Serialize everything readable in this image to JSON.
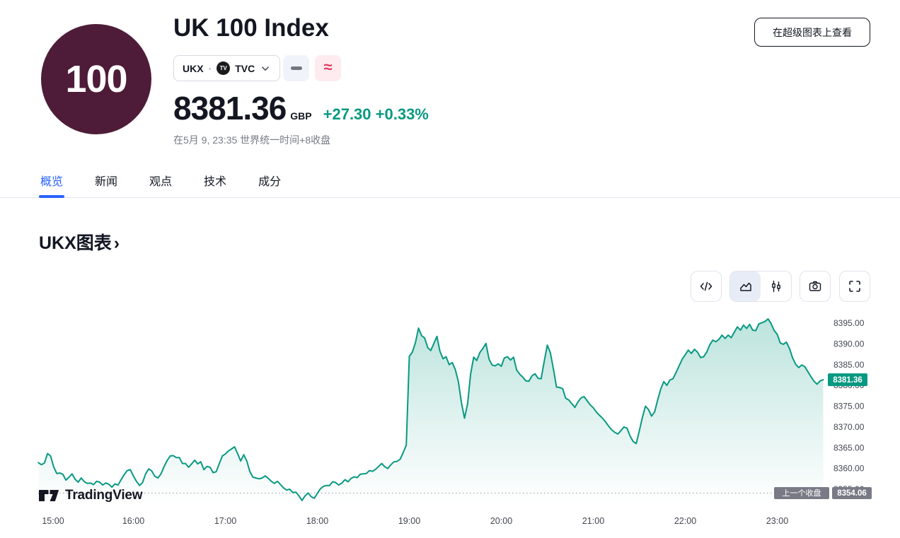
{
  "header": {
    "logo_text": "100",
    "title": "UK 100 Index",
    "symbol": {
      "ticker": "UKX",
      "separator": "·",
      "exchange": "TVC",
      "exchange_logo_text": "TV"
    },
    "price": "8381.36",
    "currency": "GBP",
    "change": "+27.30 +0.33%",
    "close_info": "在5月 9, 23:35 世界统一时间+8收盘",
    "supercharts_button": "在超级图表上查看"
  },
  "tabs": [
    {
      "label": "概览",
      "active": true
    },
    {
      "label": "新闻",
      "active": false
    },
    {
      "label": "观点",
      "active": false
    },
    {
      "label": "技术",
      "active": false
    },
    {
      "label": "成分",
      "active": false
    }
  ],
  "section": {
    "heading": "UKX图表",
    "chevron": "›"
  },
  "watermark": {
    "text": "TradingView"
  },
  "colors": {
    "accent_blue": "#2962ff",
    "up_green": "#089981",
    "badge_gray": "#787b86",
    "logo_plum": "#4e1c38",
    "wave_pink": "#e23b5f"
  },
  "chart_data": {
    "type": "area",
    "symbol": "UKX",
    "title": "UKX图表",
    "line_color": "#089981",
    "current_price": 8381.36,
    "current_price_label": "8381.36",
    "prev_close": 8354.06,
    "prev_close_label": "上一个收盘",
    "prev_close_value_label": "8354.06",
    "y_ticks": [
      8395,
      8390,
      8385,
      8380,
      8375,
      8370,
      8365,
      8360,
      8355
    ],
    "ylim": [
      8351,
      8397
    ],
    "x_ticks": [
      "15:00",
      "16:00",
      "17:00",
      "18:00",
      "19:00",
      "20:00",
      "21:00",
      "22:00",
      "23:00"
    ],
    "time_start": "14:58",
    "time_end": "23:30",
    "t0_min": -2,
    "dt_min": 2,
    "values": [
      8361.4,
      8360.9,
      8361.3,
      8363.6,
      8363.0,
      8360.4,
      8358.8,
      8358.9,
      8358.6,
      8357.2,
      8357.9,
      8358.7,
      8357.4,
      8356.7,
      8357.7,
      8356.8,
      8356.4,
      8356.5,
      8356.1,
      8356.9,
      8356.7,
      8356.0,
      8356.5,
      8356.2,
      8355.5,
      8356.3,
      8356.0,
      8357.3,
      8358.5,
      8359.5,
      8359.7,
      8358.2,
      8356.9,
      8355.9,
      8356.6,
      8358.7,
      8359.9,
      8359.4,
      8358.1,
      8357.7,
      8358.7,
      8360.4,
      8361.9,
      8363.0,
      8363.1,
      8362.6,
      8362.6,
      8361.2,
      8361.2,
      8360.3,
      8361.1,
      8362.0,
      8361.1,
      8361.6,
      8359.7,
      8360.5,
      8360.3,
      8359.0,
      8359.2,
      8361.1,
      8363.0,
      8363.5,
      8364.2,
      8364.7,
      8365.2,
      8363.6,
      8361.8,
      8363.3,
      8361.8,
      8359.2,
      8357.9,
      8357.7,
      8357.5,
      8357.7,
      8358.2,
      8357.6,
      8356.9,
      8356.4,
      8356.9,
      8356.1,
      8355.3,
      8354.8,
      8355.0,
      8354.2,
      8354.3,
      8353.4,
      8352.3,
      8353.4,
      8354.1,
      8353.2,
      8352.8,
      8354.0,
      8355.1,
      8355.7,
      8355.9,
      8355.9,
      8356.8,
      8356.6,
      8356.0,
      8356.5,
      8357.3,
      8356.8,
      8357.6,
      8358.0,
      8357.8,
      8358.6,
      8358.7,
      8358.8,
      8359.5,
      8359.3,
      8359.8,
      8360.5,
      8361.2,
      8360.4,
      8360.0,
      8360.9,
      8361.6,
      8361.7,
      8362.2,
      8363.8,
      8365.6,
      8387.0,
      8388.0,
      8390.3,
      8393.8,
      8392.0,
      8391.4,
      8389.1,
      8388.4,
      8390.1,
      8391.8,
      8388.2,
      8386.4,
      8386.9,
      8385.0,
      8385.5,
      8383.8,
      8380.9,
      8375.8,
      8372.1,
      8375.5,
      8382.8,
      8386.8,
      8386.0,
      8387.9,
      8388.9,
      8390.1,
      8386.3,
      8384.9,
      8384.7,
      8385.2,
      8384.6,
      8386.6,
      8386.9,
      8386.1,
      8386.8,
      8383.7,
      8382.7,
      8382.0,
      8381.1,
      8381.0,
      8382.3,
      8382.8,
      8381.7,
      8381.6,
      8385.8,
      8389.7,
      8387.9,
      8383.9,
      8379.6,
      8379.5,
      8379.2,
      8376.9,
      8376.5,
      8375.6,
      8374.7,
      8376.0,
      8377.0,
      8377.3,
      8376.3,
      8375.3,
      8374.6,
      8373.6,
      8372.8,
      8372.1,
      8371.2,
      8370.2,
      8369.3,
      8368.7,
      8368.3,
      8369.1,
      8370.0,
      8369.7,
      8367.8,
      8366.5,
      8366.0,
      8369.0,
      8372.2,
      8375.0,
      8374.2,
      8372.6,
      8373.6,
      8376.5,
      8379.1,
      8380.9,
      8380.0,
      8381.3,
      8381.6,
      8383.1,
      8384.7,
      8386.3,
      8387.4,
      8388.5,
      8387.7,
      8388.7,
      8388.0,
      8386.7,
      8386.9,
      8388.0,
      8389.8,
      8390.9,
      8390.5,
      8391.1,
      8392.1,
      8391.3,
      8392.1,
      8391.5,
      8392.8,
      8394.1,
      8393.3,
      8394.5,
      8393.7,
      8394.7,
      8393.3,
      8393.2,
      8394.8,
      8395.1,
      8395.4,
      8396.0,
      8394.9,
      8393.2,
      8392.3,
      8390.2,
      8389.9,
      8390.4,
      8388.9,
      8386.6,
      8385.1,
      8384.3,
      8384.9,
      8384.5,
      8383.3,
      8382.1,
      8381.0,
      8380.3,
      8381.1,
      8381.36
    ]
  }
}
